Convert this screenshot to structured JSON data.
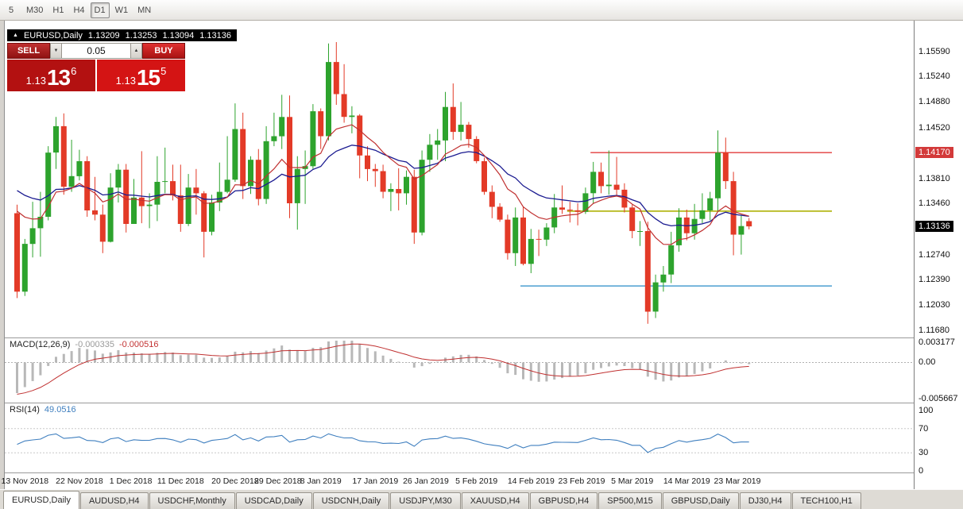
{
  "toolbar": {
    "timeframes": [
      {
        "label": "5",
        "active": false
      },
      {
        "label": "M30",
        "active": false
      },
      {
        "label": "H1",
        "active": false
      },
      {
        "label": "H4",
        "active": false
      },
      {
        "label": "D1",
        "active": true
      },
      {
        "label": "W1",
        "active": false
      },
      {
        "label": "MN",
        "active": false
      }
    ]
  },
  "info_bar": {
    "symbol": "EURUSD,Daily",
    "open": "1.13209",
    "high": "1.13253",
    "low": "1.13094",
    "close": "1.13136"
  },
  "trade_panel": {
    "sell_label": "SELL",
    "buy_label": "BUY",
    "volume": "0.05",
    "bid": {
      "prefix": "1.13",
      "big": "13",
      "sup": "6"
    },
    "ask": {
      "prefix": "1.13",
      "big": "15",
      "sup": "5"
    }
  },
  "price_scale": {
    "labels": [
      "1.15590",
      "1.15240",
      "1.14880",
      "1.14520",
      "1.13810",
      "1.13460",
      "1.12740",
      "1.12390",
      "1.12030",
      "1.11680"
    ],
    "highlighted": {
      "value": "1.14170",
      "color": "#d33a3a"
    },
    "current": {
      "value": "1.13136"
    }
  },
  "chart_data": {
    "type": "candlestick",
    "symbol": "EURUSD",
    "timeframe": "Daily",
    "grid": false,
    "view": {
      "price_top": 1.1592,
      "price_bottom": 1.116
    },
    "colors": {
      "up": "#2da32d",
      "down": "#e33a27",
      "ma_fast": "#c03030",
      "ma_slow": "#1a1a90",
      "macd_hist": "#b8b8b8",
      "macd_signal": "#c03030",
      "rsi": "#3f7fbf",
      "level_red": "#e33b3b",
      "level_yellow": "#bcbe2f",
      "level_blue": "#4c9fd0"
    },
    "ohlc": [
      [
        1.1332,
        1.1344,
        1.1213,
        1.1222
      ],
      [
        1.1222,
        1.1296,
        1.1216,
        1.1289
      ],
      [
        1.1289,
        1.1348,
        1.127,
        1.1311
      ],
      [
        1.1311,
        1.1362,
        1.1271,
        1.1327
      ],
      [
        1.1327,
        1.1426,
        1.1322,
        1.1417
      ],
      [
        1.1417,
        1.1467,
        1.1394,
        1.1454
      ],
      [
        1.1454,
        1.1472,
        1.1358,
        1.1369
      ],
      [
        1.1369,
        1.1435,
        1.1362,
        1.1384
      ],
      [
        1.1384,
        1.1421,
        1.1378,
        1.1405
      ],
      [
        1.1405,
        1.1412,
        1.1327,
        1.1336
      ],
      [
        1.1336,
        1.1383,
        1.1322,
        1.133
      ],
      [
        1.133,
        1.1344,
        1.1276,
        1.1292
      ],
      [
        1.1292,
        1.1388,
        1.1291,
        1.1368
      ],
      [
        1.1368,
        1.1401,
        1.1347,
        1.1393
      ],
      [
        1.1393,
        1.1401,
        1.1305,
        1.1317
      ],
      [
        1.1317,
        1.138,
        1.1317,
        1.1354
      ],
      [
        1.1354,
        1.1419,
        1.1318,
        1.1342
      ],
      [
        1.1342,
        1.136,
        1.1311,
        1.1344
      ],
      [
        1.1344,
        1.1412,
        1.1321,
        1.1376
      ],
      [
        1.1376,
        1.1424,
        1.136,
        1.1377
      ],
      [
        1.1377,
        1.14,
        1.135,
        1.1357
      ],
      [
        1.1357,
        1.14,
        1.1306,
        1.1317
      ],
      [
        1.1317,
        1.1387,
        1.1314,
        1.1368
      ],
      [
        1.1368,
        1.1394,
        1.133,
        1.136
      ],
      [
        1.136,
        1.1363,
        1.127,
        1.1306
      ],
      [
        1.1306,
        1.1358,
        1.1301,
        1.1347
      ],
      [
        1.1347,
        1.1403,
        1.1335,
        1.1362
      ],
      [
        1.1362,
        1.144,
        1.136,
        1.1379
      ],
      [
        1.1379,
        1.1486,
        1.1376,
        1.145
      ],
      [
        1.145,
        1.1473,
        1.1352,
        1.137
      ],
      [
        1.137,
        1.1412,
        1.1359,
        1.1407
      ],
      [
        1.1407,
        1.1422,
        1.1343,
        1.1352
      ],
      [
        1.1352,
        1.1454,
        1.1345,
        1.1433
      ],
      [
        1.1433,
        1.1473,
        1.1426,
        1.144
      ],
      [
        1.144,
        1.1498,
        1.1422,
        1.1467
      ],
      [
        1.1467,
        1.1497,
        1.1325,
        1.1346
      ],
      [
        1.1346,
        1.1412,
        1.1309,
        1.1394
      ],
      [
        1.1394,
        1.142,
        1.1345,
        1.1398
      ],
      [
        1.1398,
        1.1485,
        1.1394,
        1.1475
      ],
      [
        1.1475,
        1.1479,
        1.1422,
        1.144
      ],
      [
        1.144,
        1.157,
        1.1434,
        1.1544
      ],
      [
        1.1544,
        1.1572,
        1.1484,
        1.1499
      ],
      [
        1.1499,
        1.1541,
        1.1459,
        1.1467
      ],
      [
        1.1467,
        1.1482,
        1.1444,
        1.1469
      ],
      [
        1.1469,
        1.1471,
        1.1381,
        1.1413
      ],
      [
        1.1413,
        1.1426,
        1.1377,
        1.1394
      ],
      [
        1.1394,
        1.1401,
        1.1369,
        1.1391
      ],
      [
        1.1391,
        1.14,
        1.1353,
        1.1362
      ],
      [
        1.1362,
        1.1374,
        1.1335,
        1.1366
      ],
      [
        1.1366,
        1.1395,
        1.1336,
        1.136
      ],
      [
        1.136,
        1.1392,
        1.1344,
        1.1383
      ],
      [
        1.1383,
        1.1393,
        1.1289,
        1.1305
      ],
      [
        1.1305,
        1.142,
        1.1301,
        1.1407
      ],
      [
        1.1407,
        1.1443,
        1.139,
        1.1428
      ],
      [
        1.1428,
        1.145,
        1.1407,
        1.1434
      ],
      [
        1.1434,
        1.1502,
        1.1405,
        1.1481
      ],
      [
        1.1481,
        1.1514,
        1.1435,
        1.1446
      ],
      [
        1.1446,
        1.1488,
        1.1434,
        1.1456
      ],
      [
        1.1456,
        1.146,
        1.1424,
        1.1436
      ],
      [
        1.1436,
        1.144,
        1.1402,
        1.1405
      ],
      [
        1.1405,
        1.141,
        1.1358,
        1.1362
      ],
      [
        1.1362,
        1.1371,
        1.1325,
        1.1341
      ],
      [
        1.1341,
        1.1346,
        1.132,
        1.1323
      ],
      [
        1.1323,
        1.133,
        1.1267,
        1.1276
      ],
      [
        1.1276,
        1.134,
        1.1258,
        1.1326
      ],
      [
        1.1326,
        1.1341,
        1.1259,
        1.1261
      ],
      [
        1.1261,
        1.131,
        1.1248,
        1.1296
      ],
      [
        1.1296,
        1.1309,
        1.1272,
        1.1295
      ],
      [
        1.1295,
        1.1318,
        1.1286,
        1.1312
      ],
      [
        1.1312,
        1.1359,
        1.1304,
        1.134
      ],
      [
        1.134,
        1.1371,
        1.1331,
        1.1337
      ],
      [
        1.1337,
        1.1348,
        1.1319,
        1.1336
      ],
      [
        1.1336,
        1.1346,
        1.1315,
        1.1334
      ],
      [
        1.1334,
        1.1368,
        1.1331,
        1.136
      ],
      [
        1.136,
        1.1404,
        1.1345,
        1.139
      ],
      [
        1.139,
        1.1403,
        1.136,
        1.137
      ],
      [
        1.137,
        1.142,
        1.1358,
        1.1372
      ],
      [
        1.1372,
        1.1411,
        1.1357,
        1.1365
      ],
      [
        1.1365,
        1.1374,
        1.1333,
        1.134
      ],
      [
        1.134,
        1.1344,
        1.1297,
        1.1307
      ],
      [
        1.1307,
        1.1321,
        1.1286,
        1.1307
      ],
      [
        1.1307,
        1.132,
        1.1177,
        1.1194
      ],
      [
        1.1194,
        1.1246,
        1.1185,
        1.1235
      ],
      [
        1.1235,
        1.1258,
        1.1222,
        1.1246
      ],
      [
        1.1246,
        1.1306,
        1.1234,
        1.1287
      ],
      [
        1.1287,
        1.1339,
        1.1278,
        1.1326
      ],
      [
        1.1326,
        1.1337,
        1.1294,
        1.1304
      ],
      [
        1.1304,
        1.1345,
        1.1295,
        1.1324
      ],
      [
        1.1324,
        1.136,
        1.1318,
        1.1336
      ],
      [
        1.1336,
        1.1362,
        1.1322,
        1.1353
      ],
      [
        1.1353,
        1.1448,
        1.1335,
        1.1417
      ],
      [
        1.1417,
        1.1438,
        1.1366,
        1.1377
      ],
      [
        1.1377,
        1.139,
        1.1273,
        1.1302
      ],
      [
        1.1302,
        1.133,
        1.1274,
        1.1314
      ],
      [
        1.13209,
        1.13253,
        1.13094,
        1.13136
      ]
    ],
    "levels": [
      {
        "name": "resistance-level",
        "price": 1.1417,
        "color": "#e33b3b",
        "from_bar": 74,
        "width": 1.4
      },
      {
        "name": "pivot-level",
        "price": 1.1335,
        "color": "#bcbe2f",
        "from_bar": 71,
        "width": 2
      },
      {
        "name": "support-level",
        "price": 1.123,
        "color": "#4c9fd0",
        "from_bar": 65,
        "width": 1.4
      }
    ],
    "date_labels": [
      {
        "label": "13 Nov 2018",
        "bar": 1
      },
      {
        "label": "22 Nov 2018",
        "bar": 8
      },
      {
        "label": "1 Dec 2018",
        "bar": 14.6
      },
      {
        "label": "11 Dec 2018",
        "bar": 21
      },
      {
        "label": "20 Dec 2018",
        "bar": 28
      },
      {
        "label": "29 Dec 2018",
        "bar": 33.5
      },
      {
        "label": "8 Jan 2019",
        "bar": 39
      },
      {
        "label": "17 Jan 2019",
        "bar": 46
      },
      {
        "label": "26 Jan 2019",
        "bar": 52.5
      },
      {
        "label": "5 Feb 2019",
        "bar": 59
      },
      {
        "label": "14 Feb 2019",
        "bar": 66
      },
      {
        "label": "23 Feb 2019",
        "bar": 72.5
      },
      {
        "label": "5 Mar 2019",
        "bar": 79
      },
      {
        "label": "14 Mar 2019",
        "bar": 86
      },
      {
        "label": "23 Mar 2019",
        "bar": 92.5
      }
    ],
    "indicators": {
      "macd": {
        "label": "MACD(12,26,9)",
        "value_main": "-0.000335",
        "value_signal": "-0.000516",
        "scale": [
          "0.003177",
          "0.00",
          "-0.005667"
        ]
      },
      "rsi": {
        "label": "RSI(14)",
        "value": "49.0516",
        "scale": [
          "100",
          "70",
          "30",
          "0"
        ]
      }
    }
  },
  "bottom_tabs": [
    {
      "label": "EURUSD,Daily",
      "active": true
    },
    {
      "label": "AUDUSD,H4",
      "active": false
    },
    {
      "label": "USDCHF,Monthly",
      "active": false
    },
    {
      "label": "USDCAD,Daily",
      "active": false
    },
    {
      "label": "USDCNH,Daily",
      "active": false
    },
    {
      "label": "USDJPY,M30",
      "active": false
    },
    {
      "label": "XAUUSD,H4",
      "active": false
    },
    {
      "label": "GBPUSD,H4",
      "active": false
    },
    {
      "label": "SP500,M15",
      "active": false
    },
    {
      "label": "GBPUSD,Daily",
      "active": false
    },
    {
      "label": "DJ30,H4",
      "active": false
    },
    {
      "label": "TECH100,H1",
      "active": false
    }
  ]
}
